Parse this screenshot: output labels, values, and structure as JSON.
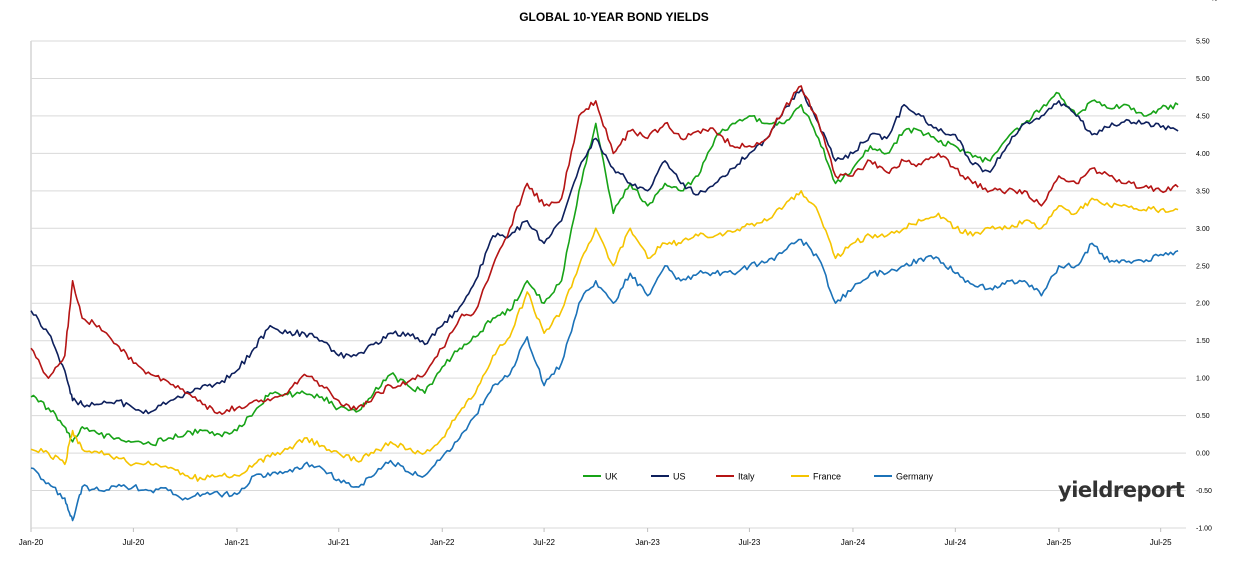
{
  "chart_data": {
    "type": "line",
    "title": "GLOBAL 10-YEAR BOND YIELDS",
    "unit": "%",
    "xlabel": "",
    "ylabel": "",
    "ylim": [
      -1.0,
      5.5
    ],
    "xlim": [
      "2020-01-01",
      "2025-08-15"
    ],
    "grid": "horizontal",
    "legend_position": "bottom-center",
    "y_ticks": [
      "5.50",
      "5.00",
      "4.50",
      "4.00",
      "3.50",
      "3.00",
      "2.50",
      "2.00",
      "1.50",
      "1.00",
      "0.50",
      "0.00",
      "-0.50",
      "-1.00"
    ],
    "x_ticks": [
      {
        "label": "Jan-20",
        "date": "2020-01-01"
      },
      {
        "label": "Jul-20",
        "date": "2020-07-01"
      },
      {
        "label": "Jan-21",
        "date": "2021-01-01"
      },
      {
        "label": "Jul-21",
        "date": "2021-07-01"
      },
      {
        "label": "Jan-22",
        "date": "2022-01-01"
      },
      {
        "label": "Jul-22",
        "date": "2022-07-01"
      },
      {
        "label": "Jan-23",
        "date": "2023-01-01"
      },
      {
        "label": "Jul-23",
        "date": "2023-07-01"
      },
      {
        "label": "Jan-24",
        "date": "2024-01-01"
      },
      {
        "label": "Jul-24",
        "date": "2024-07-01"
      },
      {
        "label": "Jan-25",
        "date": "2025-01-01"
      },
      {
        "label": "Jul-25",
        "date": "2025-07-01"
      }
    ],
    "x": [
      "2020-01-01",
      "2020-02-01",
      "2020-03-01",
      "2020-03-15",
      "2020-04-01",
      "2020-05-01",
      "2020-06-01",
      "2020-07-01",
      "2020-08-01",
      "2020-09-01",
      "2020-10-01",
      "2020-11-01",
      "2020-12-01",
      "2021-01-01",
      "2021-02-01",
      "2021-03-01",
      "2021-04-01",
      "2021-05-01",
      "2021-06-01",
      "2021-07-01",
      "2021-08-01",
      "2021-09-01",
      "2021-10-01",
      "2021-11-01",
      "2021-12-01",
      "2022-01-01",
      "2022-02-01",
      "2022-03-01",
      "2022-04-01",
      "2022-05-01",
      "2022-06-01",
      "2022-07-01",
      "2022-08-01",
      "2022-09-01",
      "2022-10-01",
      "2022-11-01",
      "2022-12-01",
      "2023-01-01",
      "2023-02-01",
      "2023-03-01",
      "2023-04-01",
      "2023-05-01",
      "2023-06-01",
      "2023-07-01",
      "2023-08-01",
      "2023-09-01",
      "2023-10-01",
      "2023-11-01",
      "2023-12-01",
      "2024-01-01",
      "2024-02-01",
      "2024-03-01",
      "2024-04-01",
      "2024-05-01",
      "2024-06-01",
      "2024-07-01",
      "2024-08-01",
      "2024-09-01",
      "2024-10-01",
      "2024-11-01",
      "2024-12-01",
      "2025-01-01",
      "2025-02-01",
      "2025-03-01",
      "2025-04-01",
      "2025-05-01",
      "2025-06-01",
      "2025-07-01",
      "2025-08-01"
    ],
    "series": [
      {
        "name": "UK",
        "color": "#17a317",
        "values": [
          0.75,
          0.6,
          0.35,
          0.15,
          0.35,
          0.25,
          0.2,
          0.15,
          0.12,
          0.2,
          0.25,
          0.3,
          0.25,
          0.3,
          0.55,
          0.8,
          0.78,
          0.8,
          0.75,
          0.6,
          0.55,
          0.8,
          1.05,
          0.9,
          0.8,
          1.15,
          1.4,
          1.55,
          1.8,
          1.9,
          2.3,
          2.0,
          2.3,
          3.5,
          4.4,
          3.2,
          3.6,
          3.3,
          3.6,
          3.5,
          3.7,
          4.2,
          4.4,
          4.5,
          4.4,
          4.4,
          4.65,
          4.2,
          3.6,
          3.8,
          4.1,
          4.0,
          4.3,
          4.3,
          4.15,
          4.1,
          3.95,
          3.9,
          4.2,
          4.4,
          4.6,
          4.8,
          4.5,
          4.7,
          4.6,
          4.65,
          4.5,
          4.6,
          4.65
        ]
      },
      {
        "name": "US",
        "color": "#0d1f5c",
        "values": [
          1.9,
          1.6,
          1.1,
          0.7,
          0.65,
          0.65,
          0.7,
          0.6,
          0.55,
          0.68,
          0.8,
          0.9,
          0.93,
          1.1,
          1.4,
          1.7,
          1.6,
          1.6,
          1.5,
          1.3,
          1.3,
          1.45,
          1.6,
          1.6,
          1.45,
          1.7,
          1.95,
          2.3,
          2.9,
          2.9,
          3.1,
          2.8,
          3.1,
          3.8,
          4.2,
          3.8,
          3.6,
          3.5,
          3.9,
          3.6,
          3.45,
          3.6,
          3.8,
          4.0,
          4.2,
          4.6,
          4.85,
          4.4,
          3.9,
          4.0,
          4.25,
          4.2,
          4.65,
          4.5,
          4.3,
          4.25,
          3.85,
          3.75,
          4.1,
          4.4,
          4.5,
          4.7,
          4.5,
          4.25,
          4.35,
          4.45,
          4.4,
          4.35,
          4.3
        ]
      },
      {
        "name": "Italy",
        "color": "#b51414",
        "values": [
          1.4,
          1.0,
          1.3,
          2.3,
          1.8,
          1.7,
          1.45,
          1.2,
          1.05,
          0.95,
          0.8,
          0.65,
          0.55,
          0.6,
          0.7,
          0.7,
          0.8,
          1.05,
          0.9,
          0.7,
          0.58,
          0.75,
          0.9,
          0.95,
          1.05,
          1.4,
          1.8,
          1.9,
          2.5,
          3.0,
          3.6,
          3.3,
          3.4,
          4.5,
          4.7,
          4.0,
          4.3,
          4.2,
          4.4,
          4.2,
          4.3,
          4.3,
          4.1,
          4.1,
          4.2,
          4.6,
          4.9,
          4.4,
          3.7,
          3.7,
          3.9,
          3.75,
          3.9,
          3.85,
          4.0,
          3.8,
          3.6,
          3.5,
          3.5,
          3.5,
          3.3,
          3.7,
          3.6,
          3.8,
          3.7,
          3.6,
          3.55,
          3.5,
          3.55
        ]
      },
      {
        "name": "France",
        "color": "#f5c400",
        "values": [
          0.05,
          0.0,
          -0.15,
          0.3,
          0.05,
          0.0,
          -0.05,
          -0.15,
          -0.15,
          -0.2,
          -0.3,
          -0.35,
          -0.3,
          -0.3,
          -0.15,
          -0.05,
          0.05,
          0.2,
          0.1,
          0.0,
          -0.1,
          0.0,
          0.15,
          0.05,
          0.0,
          0.2,
          0.55,
          0.8,
          1.3,
          1.55,
          2.15,
          1.6,
          1.9,
          2.5,
          3.0,
          2.5,
          3.0,
          2.6,
          2.8,
          2.8,
          2.9,
          2.9,
          2.95,
          3.05,
          3.1,
          3.3,
          3.5,
          3.2,
          2.6,
          2.8,
          2.9,
          2.9,
          3.0,
          3.1,
          3.2,
          3.0,
          2.9,
          3.0,
          3.0,
          3.1,
          3.0,
          3.3,
          3.2,
          3.4,
          3.3,
          3.3,
          3.25,
          3.25,
          3.25
        ]
      },
      {
        "name": "Germany",
        "color": "#1b72b8",
        "values": [
          -0.2,
          -0.4,
          -0.6,
          -0.9,
          -0.45,
          -0.5,
          -0.45,
          -0.45,
          -0.5,
          -0.5,
          -0.6,
          -0.55,
          -0.55,
          -0.55,
          -0.3,
          -0.3,
          -0.25,
          -0.15,
          -0.2,
          -0.35,
          -0.45,
          -0.3,
          -0.1,
          -0.25,
          -0.3,
          -0.05,
          0.2,
          0.5,
          0.9,
          1.05,
          1.55,
          0.9,
          1.2,
          2.0,
          2.3,
          2.0,
          2.4,
          2.1,
          2.5,
          2.3,
          2.4,
          2.4,
          2.4,
          2.5,
          2.55,
          2.7,
          2.85,
          2.6,
          2.0,
          2.2,
          2.4,
          2.4,
          2.5,
          2.6,
          2.6,
          2.4,
          2.25,
          2.2,
          2.3,
          2.3,
          2.1,
          2.5,
          2.5,
          2.8,
          2.55,
          2.55,
          2.55,
          2.65,
          2.7
        ]
      }
    ]
  },
  "logo": {
    "text_main": "yieldreport"
  }
}
